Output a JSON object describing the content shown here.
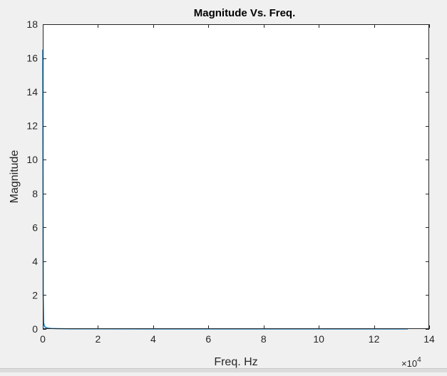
{
  "window": {
    "background_color": "#f0f0f0"
  },
  "chart_data": {
    "type": "line",
    "title": "Magnitude Vs. Freq.",
    "xlabel": "Freq. Hz",
    "ylabel": "Magnitude",
    "xlim": [
      0,
      140000
    ],
    "ylim": [
      0,
      18
    ],
    "x_ticks": [
      0,
      20000,
      40000,
      60000,
      80000,
      100000,
      120000,
      140000
    ],
    "x_tick_labels": [
      "0",
      "2",
      "4",
      "6",
      "8",
      "10",
      "12",
      "14"
    ],
    "y_ticks": [
      0,
      2,
      4,
      6,
      8,
      10,
      12,
      14,
      16,
      18
    ],
    "y_tick_labels": [
      "0",
      "2",
      "4",
      "6",
      "8",
      "10",
      "12",
      "14",
      "16",
      "18"
    ],
    "x_exponent_label": {
      "base": "×10",
      "exponent": "4"
    },
    "grid": false,
    "legend": "none",
    "series": [
      {
        "color": "#0072bd",
        "x": [
          0,
          150,
          300,
          500,
          800,
          1200,
          2000,
          3000,
          5000,
          10000,
          20000,
          40000,
          60000,
          80000,
          100000,
          120000,
          132300
        ],
        "y": [
          16.5,
          2.0,
          0.4,
          0.2,
          0.12,
          0.08,
          0.05,
          0.03,
          0.02,
          0.01,
          0.01,
          0.005,
          0.005,
          0.005,
          0.005,
          0.005,
          0.005
        ]
      }
    ]
  }
}
